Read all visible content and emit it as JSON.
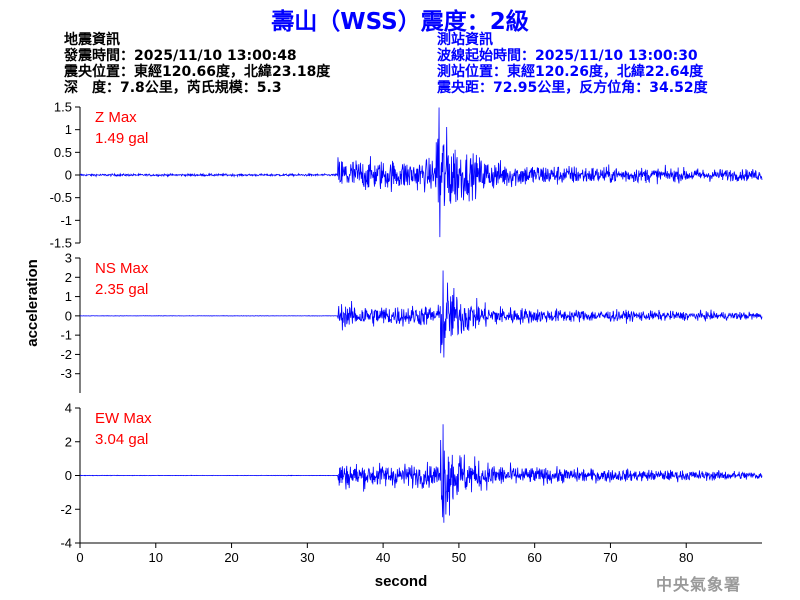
{
  "title": "壽山（WSS）震度：2級",
  "quake_info": {
    "header": "地震資訊",
    "time": "發震時間：2025/11/10 13:00:48",
    "epicenter": "震央位置：東經120.66度，北緯23.18度",
    "depth_mag": "深　度：7.8公里，芮氏規模：5.3"
  },
  "station_info": {
    "header": "測站資訊",
    "wave_start": "波線起始時間：2025/11/10 13:00:30",
    "location": "測站位置：東經120.26度，北緯22.64度",
    "distance": "震央距：72.95公里，反方位角：34.52度"
  },
  "organization": "中央氣象署",
  "colors": {
    "title": "#0000ff",
    "trace": "#0000ff",
    "max_label": "#ff0000",
    "station_info": "#0000ff"
  },
  "chart_data": {
    "type": "line",
    "xlabel": "second",
    "ylabel": "acceleration",
    "xlim": [
      0,
      90
    ],
    "x_ticks": [
      "0",
      "10",
      "20",
      "30",
      "40",
      "50",
      "60",
      "70",
      "80"
    ],
    "x_tick_values": [
      0,
      10,
      20,
      30,
      40,
      50,
      60,
      70,
      80
    ],
    "grid": false,
    "shared_x_axis": true,
    "panels": [
      {
        "name": "Z",
        "max_label": "Z Max",
        "max_value": "1.49 gal",
        "ylim": [
          -1.5,
          1.5
        ],
        "y_ticks": [
          "1.5",
          "1",
          "0.5",
          "0",
          "-0.5",
          "-1",
          "-1.5"
        ],
        "y_tick_values": [
          1.5,
          1,
          0.5,
          0,
          -0.5,
          -1,
          -1.5
        ],
        "peak": 1.49,
        "p_arrival": 34,
        "s_arrival": 47,
        "noise": 0.02
      },
      {
        "name": "NS",
        "max_label": "NS Max",
        "max_value": "2.35 gal",
        "ylim": [
          -4,
          3
        ],
        "y_ticks": [
          "3",
          "2",
          "1",
          "0",
          "-1",
          "-2",
          "-3"
        ],
        "y_tick_values": [
          3,
          2,
          1,
          0,
          -1,
          -2,
          -3
        ],
        "peak": 2.35,
        "p_arrival": 34,
        "s_arrival": 47.5,
        "noise": 0.005
      },
      {
        "name": "EW",
        "max_label": "EW Max",
        "max_value": "3.04 gal",
        "ylim": [
          -4,
          4
        ],
        "y_ticks": [
          "4",
          "2",
          "0",
          "-2",
          "-4"
        ],
        "y_tick_values": [
          4,
          2,
          0,
          -2,
          -4
        ],
        "peak": 3.04,
        "p_arrival": 34,
        "s_arrival": 47.5,
        "noise": 0.005
      }
    ]
  }
}
